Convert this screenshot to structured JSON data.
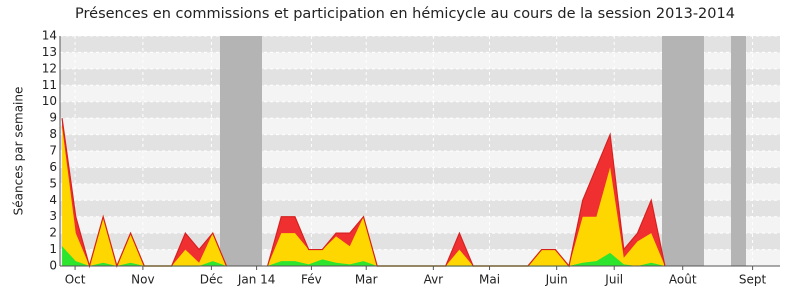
{
  "chart_data": {
    "type": "stacked_area",
    "title": "Présences en commissions et participation en hémicycle au cours de la session 2013-2014",
    "y_label": "Séances par semaine",
    "x": [
      0,
      1,
      2,
      3,
      4,
      5,
      6,
      7,
      8,
      9,
      10,
      11,
      12,
      13,
      14,
      15,
      16,
      17,
      18,
      19,
      20,
      21,
      22,
      23,
      24,
      25,
      26,
      27,
      28,
      29,
      30,
      31,
      32,
      33,
      34,
      35,
      36,
      37,
      38,
      39,
      40,
      41,
      42,
      43,
      44,
      45,
      46,
      47,
      48,
      49,
      50,
      51,
      52
    ],
    "series": [
      {
        "color": "#2ee52e",
        "values": [
          1.2,
          0.3,
          0,
          0.2,
          0,
          0.2,
          0,
          0,
          0,
          0,
          0,
          0.3,
          0,
          null,
          null,
          0,
          0.3,
          0.3,
          0.1,
          0.4,
          0.2,
          0.1,
          0.3,
          0,
          0,
          0,
          0,
          0,
          0,
          0,
          0,
          0,
          0,
          0,
          0,
          0,
          0,
          0,
          0.2,
          0.3,
          0.8,
          0.1,
          0,
          0.2,
          0,
          null,
          null,
          null,
          null,
          null,
          null,
          null,
          null
        ]
      },
      {
        "color": "#ffd700",
        "values": [
          7.3,
          1.7,
          0,
          2.8,
          0,
          1.8,
          0,
          0,
          0,
          1,
          0.2,
          1.7,
          0,
          null,
          null,
          0,
          1.7,
          1.7,
          0.9,
          0.6,
          1.6,
          1.1,
          2.7,
          0,
          0,
          0,
          0,
          0,
          0,
          1,
          0,
          0,
          0,
          0,
          0,
          1,
          1,
          0,
          2.8,
          2.7,
          5.2,
          0.4,
          1.5,
          1.8,
          0,
          null,
          null,
          null,
          null,
          null,
          null,
          null,
          null
        ]
      },
      {
        "color": "#f03030",
        "values": [
          0.5,
          1,
          0,
          0,
          0,
          0,
          0,
          0,
          0,
          1,
          0.8,
          0,
          0,
          null,
          null,
          0,
          1,
          1,
          0,
          0,
          0.2,
          0.8,
          0,
          0,
          0,
          0,
          0,
          0,
          0,
          1,
          0,
          0,
          0,
          0,
          0,
          0,
          0,
          0,
          1,
          3,
          2,
          0.5,
          0.5,
          2,
          0,
          null,
          null,
          null,
          null,
          null,
          null,
          null,
          null
        ]
      }
    ],
    "xlim": [
      -0.15,
      52.4
    ],
    "xticks": [
      {
        "value": 0.95,
        "label": "Oct"
      },
      {
        "value": 5.9,
        "label": "Nov"
      },
      {
        "value": 10.9,
        "label": "Déc"
      },
      {
        "value": 14.2,
        "label": "Jan 14"
      },
      {
        "value": 18.2,
        "label": "Fév"
      },
      {
        "value": 22.2,
        "label": "Mar"
      },
      {
        "value": 27.1,
        "label": "Avr"
      },
      {
        "value": 31.2,
        "label": "Mai"
      },
      {
        "value": 36.1,
        "label": "Juin"
      },
      {
        "value": 40.3,
        "label": "Juil"
      },
      {
        "value": 45.3,
        "label": "Août"
      },
      {
        "value": 50.4,
        "label": "Sept"
      }
    ],
    "ylim": [
      0,
      14
    ],
    "yticks": [
      0,
      1,
      2,
      3,
      4,
      5,
      6,
      7,
      8,
      9,
      10,
      11,
      12,
      13,
      14
    ],
    "grid": true
  }
}
